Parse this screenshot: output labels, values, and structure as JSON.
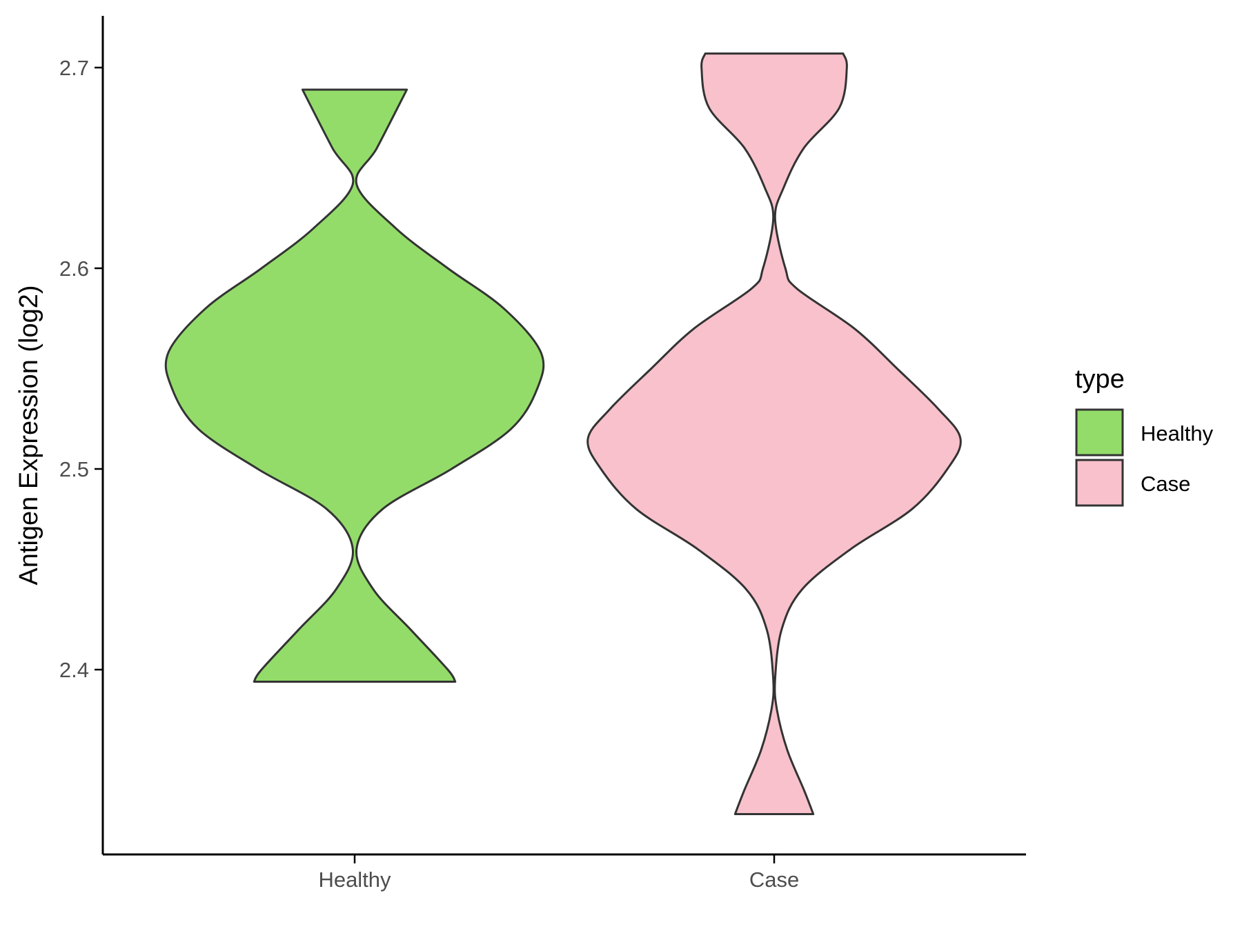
{
  "chart_data": {
    "type": "violin",
    "xlabel": "",
    "ylabel": "Antigen Expression (log2)",
    "ylim": [
      2.31,
      2.725
    ],
    "yticks": [
      "2.4",
      "2.5",
      "2.6",
      "2.7"
    ],
    "categories": [
      "Healthy",
      "Case"
    ],
    "grid": false,
    "legend": {
      "title": "type",
      "placement": "right",
      "entries": [
        "Healthy",
        "Case"
      ]
    },
    "series": [
      {
        "name": "Healthy",
        "color": "#93dc6a",
        "min": 2.394,
        "max": 2.689,
        "density_profile": [
          [
            2.394,
            0.54
          ],
          [
            2.4,
            0.5
          ],
          [
            2.42,
            0.3
          ],
          [
            2.44,
            0.1
          ],
          [
            2.46,
            0.01
          ],
          [
            2.48,
            0.15
          ],
          [
            2.5,
            0.52
          ],
          [
            2.52,
            0.84
          ],
          [
            2.54,
            0.98
          ],
          [
            2.558,
            1.0
          ],
          [
            2.58,
            0.8
          ],
          [
            2.6,
            0.5
          ],
          [
            2.62,
            0.22
          ],
          [
            2.642,
            0.01
          ],
          [
            2.66,
            0.12
          ],
          [
            2.689,
            0.28
          ]
        ]
      },
      {
        "name": "Case",
        "color": "#f8c1cc",
        "min": 2.328,
        "max": 2.707,
        "density_profile": [
          [
            2.328,
            0.21
          ],
          [
            2.34,
            0.16
          ],
          [
            2.36,
            0.07
          ],
          [
            2.38,
            0.015
          ],
          [
            2.395,
            0.005
          ],
          [
            2.42,
            0.04
          ],
          [
            2.44,
            0.15
          ],
          [
            2.46,
            0.41
          ],
          [
            2.48,
            0.74
          ],
          [
            2.5,
            0.93
          ],
          [
            2.515,
            1.0
          ],
          [
            2.53,
            0.88
          ],
          [
            2.55,
            0.66
          ],
          [
            2.57,
            0.43
          ],
          [
            2.59,
            0.12
          ],
          [
            2.6,
            0.06
          ],
          [
            2.625,
            0.005
          ],
          [
            2.64,
            0.05
          ],
          [
            2.66,
            0.16
          ],
          [
            2.68,
            0.35
          ],
          [
            2.7,
            0.39
          ],
          [
            2.707,
            0.37
          ]
        ]
      }
    ]
  },
  "colors": {
    "outline": "#333333",
    "axis": "#000000",
    "tick_text": "#4d4d4d"
  }
}
